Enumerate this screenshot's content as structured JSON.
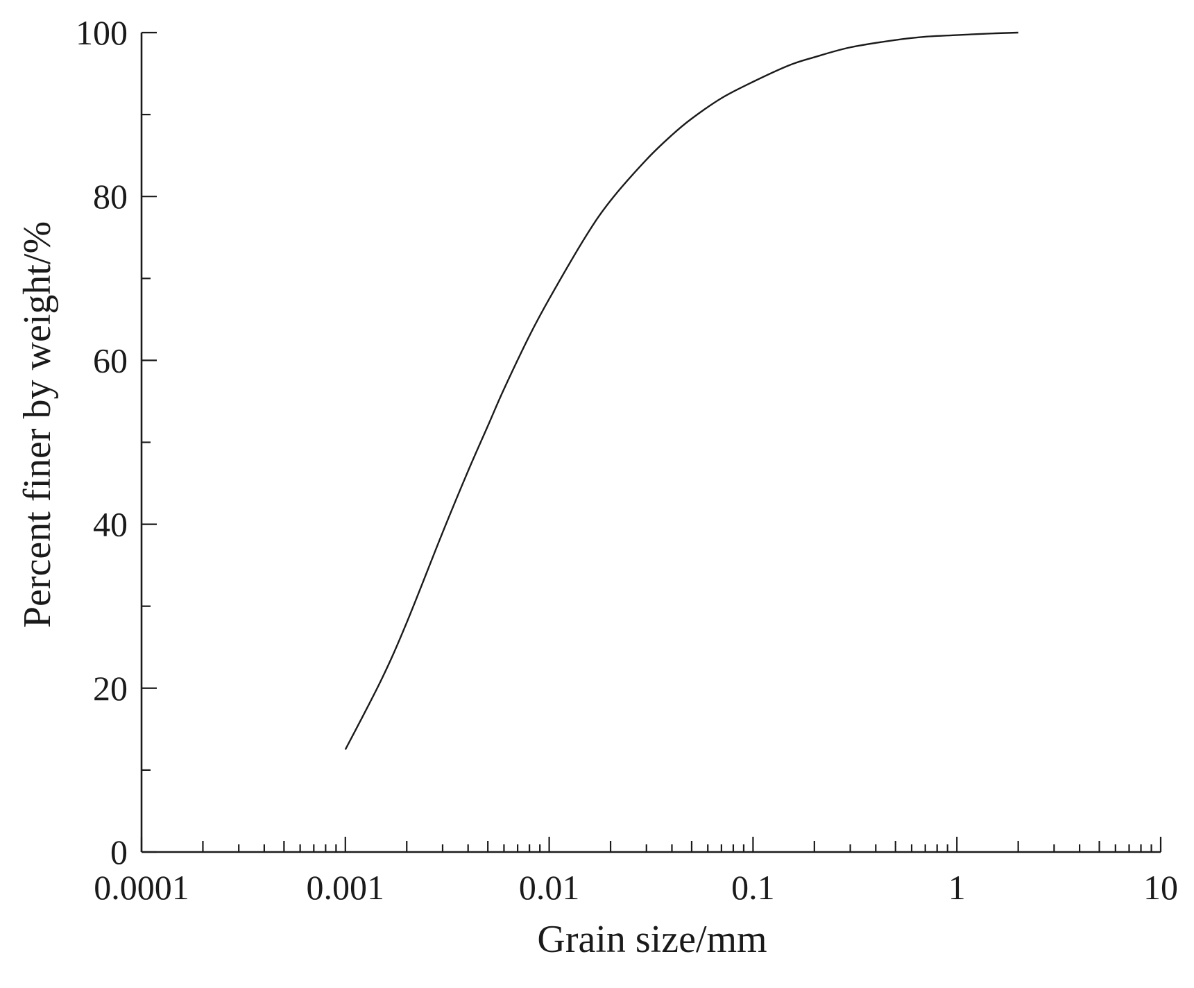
{
  "chart_data": {
    "type": "line",
    "title": "",
    "xlabel": "Grain size/mm",
    "ylabel": "Percent finer by weight/%",
    "x_scale": "log",
    "xlim": [
      0.0001,
      10
    ],
    "ylim": [
      0,
      100
    ],
    "x_ticks": [
      0.0001,
      0.001,
      0.01,
      0.1,
      1,
      10
    ],
    "x_tick_labels": [
      "0.0001",
      "0.001",
      "0.01",
      "0.1",
      "1",
      "10"
    ],
    "y_ticks": [
      0,
      20,
      40,
      60,
      80,
      100
    ],
    "y_tick_labels": [
      "0",
      "20",
      "40",
      "60",
      "80",
      "100"
    ],
    "y_minor_ticks": [
      10,
      30,
      50,
      70,
      90
    ],
    "grid": false,
    "legend": "none",
    "line_color": "#1a1a1a",
    "series": [
      {
        "x": [
          0.001,
          0.0015,
          0.002,
          0.003,
          0.004,
          0.005,
          0.006,
          0.008,
          0.01,
          0.015,
          0.02,
          0.03,
          0.04,
          0.05,
          0.07,
          0.1,
          0.15,
          0.2,
          0.3,
          0.5,
          0.7,
          1,
          1.5,
          2
        ],
        "values": [
          12.5,
          21,
          28,
          39,
          46.5,
          52,
          56.5,
          63,
          67.5,
          75,
          79.5,
          84.5,
          87.5,
          89.5,
          92,
          94,
          96,
          97,
          98.2,
          99.1,
          99.5,
          99.7,
          99.9,
          100
        ]
      }
    ]
  }
}
